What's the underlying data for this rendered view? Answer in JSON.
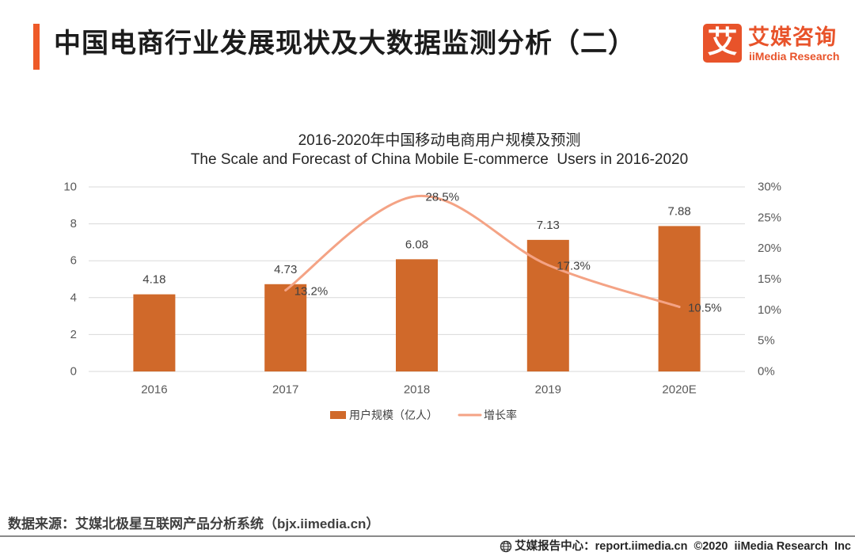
{
  "theme": {
    "accent": "#EE5A28",
    "brand": "#E8532A"
  },
  "header": {
    "title": "中国电商行业发展现状及大数据监测分析（二）"
  },
  "logo": {
    "mark": "艾",
    "name_cn": "艾媒咨询",
    "name_en": "iiMedia Research"
  },
  "chart_data": {
    "type": "bar",
    "title": "2016-2020年中国移动电商用户规模及预测",
    "subtitle": "The Scale and Forecast of China Mobile E-commerce  Users in 2016-2020",
    "categories": [
      "2016",
      "2017",
      "2018",
      "2019",
      "2020E"
    ],
    "xlabel": "",
    "y_left": {
      "min": 0,
      "max": 10,
      "ticks": [
        "0",
        "2",
        "4",
        "6",
        "8",
        "10"
      ]
    },
    "y_right": {
      "min": 0,
      "max": 30,
      "ticks": [
        "0%",
        "5%",
        "10%",
        "15%",
        "20%",
        "25%",
        "30%"
      ]
    },
    "grid": true,
    "legend": "bottom",
    "series": [
      {
        "name": "用户规模（亿人）",
        "type": "bar",
        "secondary_axis": false,
        "color": "#D0692A",
        "values": [
          4.18,
          4.73,
          6.08,
          7.13,
          7.88
        ]
      },
      {
        "name": "增长率",
        "type": "line",
        "secondary_axis": true,
        "smooth": true,
        "color": "#F4A385",
        "unit": "%",
        "x": [
          "2017",
          "2018",
          "2019",
          "2020E"
        ],
        "values": [
          13.2,
          28.5,
          17.3,
          10.5
        ]
      }
    ]
  },
  "source": "数据来源：艾媒北极星互联网产品分析系统（bjx.iimedia.cn）",
  "footer": {
    "icon": "globe-icon",
    "text": "艾媒报告中心：report.iimedia.cn  ©2020  iiMedia Research  Inc"
  }
}
